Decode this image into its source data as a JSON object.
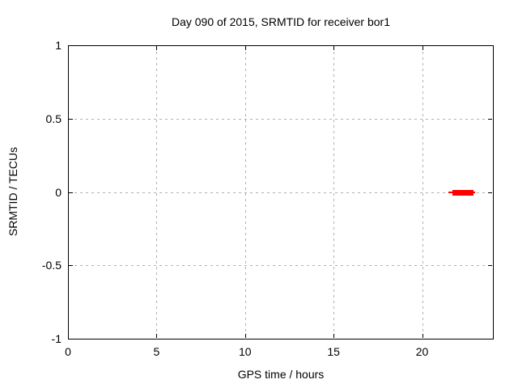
{
  "page": {
    "background": "#ffffff",
    "text_color": "#000000"
  },
  "chart_data": {
    "type": "line",
    "title": "Day 090 of 2015, SRMTID for receiver bor1",
    "xlabel": "GPS time / hours",
    "ylabel": "SRMTID / TECUs",
    "xlim": [
      0,
      24
    ],
    "ylim": [
      -1,
      1
    ],
    "x_ticks": [
      {
        "value": 0,
        "label": "0"
      },
      {
        "value": 5,
        "label": "5"
      },
      {
        "value": 10,
        "label": "10"
      },
      {
        "value": 15,
        "label": "15"
      },
      {
        "value": 20,
        "label": "20"
      }
    ],
    "y_ticks": [
      {
        "value": 1,
        "label": "1"
      },
      {
        "value": 0.5,
        "label": "0.5"
      },
      {
        "value": 0,
        "label": "0"
      },
      {
        "value": -0.5,
        "label": "-0.5"
      },
      {
        "value": -1,
        "label": "-1"
      }
    ],
    "grid": {
      "on": true,
      "x_values": [
        5,
        10,
        15,
        20
      ],
      "y_values": [
        0.5,
        0,
        -0.5
      ],
      "color": "#b0b0b0",
      "style": "dashed"
    },
    "axis_color": "#000000",
    "legend": {
      "visible": false
    },
    "series": [
      {
        "name": "SRMTID",
        "color": "#ff0000",
        "style": "horizontal-segment-with-whiskers",
        "y": 0,
        "x_start": 21.5,
        "x_end": 23.0,
        "core_x_start": 21.7,
        "core_x_end": 22.9
      }
    ]
  }
}
